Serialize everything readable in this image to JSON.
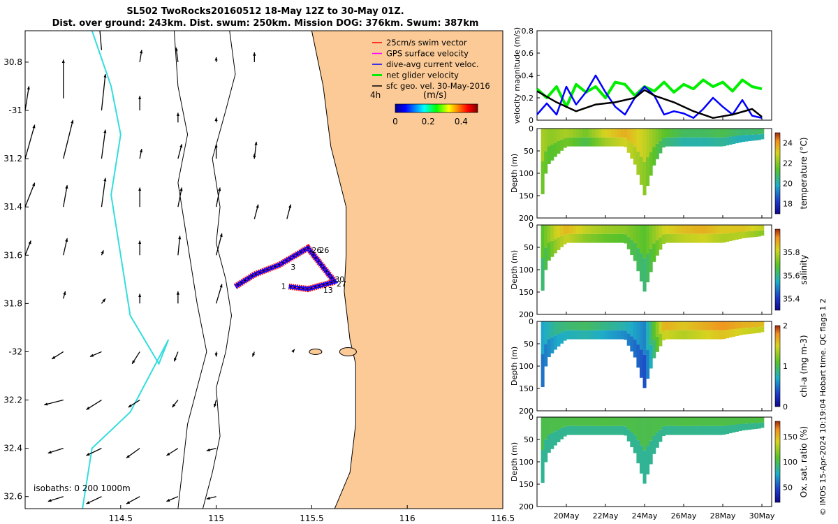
{
  "title": {
    "line1": "SL502 TwoRocks20160512 18-May 12Z to 30-May 01Z.",
    "line2": "Dist. over ground: 243km. Dist. swum: 250km. Mission DOG: 376km. Swum: 387km"
  },
  "credit": "© IMOS 15-Apr-2024 10:19:04 Hobart time. QC flags 1  2",
  "colors": {
    "land": "#fbca96",
    "isobath_200": "#000000",
    "isobath_1000": "#33dddd",
    "swim": "#ff0000",
    "gps": "#ff00ff",
    "current": "#0000ff",
    "net": "#00ee00",
    "geo": "#000000"
  },
  "chart_data": [
    {
      "type": "scatter",
      "id": "map",
      "xticks": [
        114.5,
        115,
        115.5,
        116,
        116.5
      ],
      "xtick_labels": [
        "114.5",
        "115",
        "115.5",
        "116",
        "116.5"
      ],
      "yticks": [
        -30.8,
        -31,
        -31.2,
        -31.4,
        -31.6,
        -31.8,
        -32,
        -32.2,
        -32.4,
        -32.6
      ],
      "ytick_labels": [
        "30.8",
        "-31",
        "31.2",
        "31.4",
        "31.6",
        "31.8",
        "-32",
        "32.2",
        "32.4",
        "32.6"
      ],
      "xlim": [
        114.0,
        116.5
      ],
      "ylim": [
        -32.65,
        -30.67
      ],
      "legend": [
        "25cm/s swim vector",
        "GPS surface velocity",
        "dive-avg current veloc.",
        "net glider velocity",
        "sfc geo. vel. 30-May-2016"
      ],
      "colorbar": {
        "label": "(m/s)",
        "prefix": "4h",
        "ticks": [
          "0",
          "0.2",
          "0.4"
        ],
        "range": [
          0,
          0.5
        ]
      },
      "isobath_label": "isobaths: 0   200  1000m",
      "waypoint_labels": [
        "1",
        "3",
        "26",
        "26",
        "30",
        "27",
        "13"
      ],
      "track": [
        [
          115.1,
          -31.73
        ],
        [
          115.2,
          -31.68
        ],
        [
          115.33,
          -31.64
        ],
        [
          115.48,
          -31.57
        ],
        [
          115.58,
          -31.67
        ],
        [
          115.62,
          -31.71
        ],
        [
          115.48,
          -31.74
        ],
        [
          115.38,
          -31.73
        ]
      ],
      "geo_vectors": [
        [
          114.4,
          -30.75,
          -0.02,
          0.18
        ],
        [
          114.6,
          -30.8,
          0.01,
          0.05
        ],
        [
          114.8,
          -30.8,
          -0.01,
          0.06
        ],
        [
          115.0,
          -30.8,
          0.0,
          0.02
        ],
        [
          115.2,
          -30.8,
          0.0,
          0.04
        ],
        [
          114.0,
          -31.0,
          0.02,
          0.1
        ],
        [
          114.2,
          -30.95,
          0.0,
          0.16
        ],
        [
          114.4,
          -31.0,
          0.02,
          0.15
        ],
        [
          114.6,
          -31.0,
          0.0,
          0.06
        ],
        [
          114.8,
          -31.05,
          0.0,
          0.04
        ],
        [
          115.0,
          -31.05,
          0.0,
          0.02
        ],
        [
          115.2,
          -31.2,
          0.0,
          0.02
        ],
        [
          114.0,
          -31.2,
          0.05,
          0.14
        ],
        [
          114.2,
          -31.2,
          0.05,
          0.16
        ],
        [
          114.4,
          -31.2,
          0.02,
          0.12
        ],
        [
          114.6,
          -31.2,
          0.01,
          0.04
        ],
        [
          114.8,
          -31.2,
          0.02,
          0.06
        ],
        [
          115.0,
          -31.2,
          0.0,
          0.06
        ],
        [
          115.2,
          -31.2,
          0.01,
          0.07
        ],
        [
          114.0,
          -31.4,
          0.05,
          0.1
        ],
        [
          114.2,
          -31.4,
          0.02,
          0.09
        ],
        [
          114.4,
          -31.4,
          0.02,
          0.12
        ],
        [
          114.6,
          -31.4,
          0.0,
          0.08
        ],
        [
          114.8,
          -31.4,
          0.02,
          0.08
        ],
        [
          115.0,
          -31.4,
          0.02,
          0.08
        ],
        [
          115.2,
          -31.45,
          0.02,
          0.06
        ],
        [
          115.37,
          -31.45,
          0.02,
          0.06
        ],
        [
          114.0,
          -31.6,
          0.03,
          0.06
        ],
        [
          114.2,
          -31.6,
          0.02,
          0.07
        ],
        [
          114.4,
          -31.6,
          0.01,
          0.02
        ],
        [
          114.6,
          -31.6,
          0.0,
          0.06
        ],
        [
          114.8,
          -31.6,
          0.01,
          0.08
        ],
        [
          115.0,
          -31.6,
          0.03,
          0.09
        ],
        [
          114.2,
          -31.78,
          0.01,
          0.03
        ],
        [
          114.4,
          -31.8,
          0.02,
          0.02
        ],
        [
          114.6,
          -31.8,
          0.0,
          0.04
        ],
        [
          114.8,
          -31.8,
          0.0,
          0.05
        ],
        [
          115.0,
          -31.8,
          0.03,
          0.08
        ],
        [
          114.0,
          -32.0,
          -0.08,
          -0.03
        ],
        [
          114.2,
          -32.0,
          -0.06,
          -0.03
        ],
        [
          114.4,
          -32.0,
          -0.06,
          -0.02
        ],
        [
          114.6,
          -32.0,
          -0.04,
          -0.05
        ],
        [
          114.8,
          -32.0,
          -0.02,
          -0.04
        ],
        [
          115.0,
          -32.0,
          0.0,
          -0.02
        ],
        [
          115.2,
          -32.0,
          -0.01,
          -0.02
        ],
        [
          115.4,
          -32.0,
          0.01,
          0.01
        ],
        [
          114.0,
          -32.2,
          -0.1,
          -0.02
        ],
        [
          114.2,
          -32.2,
          -0.1,
          -0.02
        ],
        [
          114.4,
          -32.2,
          -0.08,
          -0.04
        ],
        [
          114.6,
          -32.2,
          -0.06,
          -0.03
        ],
        [
          114.8,
          -32.2,
          -0.03,
          -0.03
        ],
        [
          115.0,
          -32.2,
          -0.01,
          -0.03
        ],
        [
          114.0,
          -32.4,
          -0.08,
          -0.02
        ],
        [
          114.2,
          -32.4,
          -0.08,
          -0.02
        ],
        [
          114.4,
          -32.4,
          -0.08,
          -0.03
        ],
        [
          114.6,
          -32.4,
          -0.07,
          -0.04
        ],
        [
          114.8,
          -32.4,
          -0.06,
          -0.03
        ],
        [
          115.0,
          -32.4,
          -0.05,
          -0.01
        ],
        [
          114.0,
          -32.6,
          -0.08,
          -0.02
        ],
        [
          114.2,
          -32.6,
          -0.08,
          -0.02
        ],
        [
          114.4,
          -32.6,
          -0.08,
          -0.03
        ],
        [
          114.6,
          -32.6,
          -0.07,
          -0.03
        ],
        [
          114.8,
          -32.6,
          -0.06,
          -0.02
        ],
        [
          115.0,
          -32.6,
          -0.05,
          -0.01
        ]
      ]
    },
    {
      "type": "line",
      "id": "velocity",
      "ylabel": "velocity magnitude (m/s)",
      "ylim": [
        0,
        0.8
      ],
      "yticks": [
        0,
        0.2,
        0.4,
        0.6,
        0.8
      ],
      "xlim": [
        18.5,
        30.5
      ],
      "series": [
        {
          "name": "net glider velocity",
          "color": "#00ee00",
          "x": [
            18.5,
            19,
            19.5,
            20,
            20.5,
            21,
            21.5,
            22,
            22.5,
            23,
            23.5,
            24,
            24.5,
            25,
            25.5,
            26,
            26.5,
            27,
            27.5,
            28,
            28.5,
            29,
            29.5,
            30
          ],
          "values": [
            0.28,
            0.2,
            0.3,
            0.12,
            0.32,
            0.25,
            0.3,
            0.2,
            0.34,
            0.32,
            0.22,
            0.3,
            0.26,
            0.34,
            0.25,
            0.32,
            0.28,
            0.36,
            0.3,
            0.34,
            0.26,
            0.36,
            0.3,
            0.28
          ]
        },
        {
          "name": "dive-avg current veloc.",
          "color": "#0000ff",
          "x": [
            18.5,
            19,
            19.5,
            20,
            20.5,
            21,
            21.5,
            22,
            22.5,
            23,
            23.5,
            24,
            24.5,
            25,
            25.5,
            26,
            26.5,
            27,
            27.5,
            28,
            28.5,
            29,
            29.5,
            30
          ],
          "values": [
            0.05,
            0.15,
            0.05,
            0.3,
            0.14,
            0.25,
            0.4,
            0.25,
            0.12,
            0.05,
            0.2,
            0.3,
            0.22,
            0.05,
            0.08,
            0.06,
            0.02,
            0.1,
            0.2,
            0.12,
            0.05,
            0.18,
            0.04,
            0.02
          ]
        },
        {
          "name": "sfc geo. vel.",
          "color": "#000000",
          "x": [
            18.5,
            19.5,
            20.5,
            21.5,
            22.5,
            23.5,
            24,
            24.5,
            25.5,
            26.5,
            27.5,
            28.5,
            29.5,
            30
          ],
          "values": [
            0.26,
            0.16,
            0.08,
            0.14,
            0.16,
            0.2,
            0.27,
            0.22,
            0.16,
            0.08,
            0.02,
            0.05,
            0.1,
            0.03
          ]
        }
      ]
    },
    {
      "type": "heatmap",
      "id": "temperature",
      "label": "temperature (°C)",
      "ylabel": "Depth (m)",
      "yticks": [
        "0",
        "50",
        "100",
        "150",
        "200"
      ],
      "cticks": [
        "18",
        "20",
        "22",
        "24"
      ],
      "crange": [
        17,
        25
      ],
      "colormap": "parula",
      "bottom_depth": [
        [
          18.7,
          170
        ],
        [
          19.0,
          85
        ],
        [
          19.5,
          60
        ],
        [
          20,
          40
        ],
        [
          21,
          40
        ],
        [
          22,
          40
        ],
        [
          23,
          40
        ],
        [
          23.5,
          80
        ],
        [
          24,
          150
        ],
        [
          24.5,
          80
        ],
        [
          25,
          40
        ],
        [
          26,
          40
        ],
        [
          27,
          40
        ],
        [
          28,
          40
        ],
        [
          29,
          30
        ],
        [
          30,
          25
        ],
        [
          30.1,
          20
        ]
      ],
      "column_values": [
        [
          18.7,
          22.2
        ],
        [
          19.2,
          21.8
        ],
        [
          20,
          22.2
        ],
        [
          21,
          21.5
        ],
        [
          22,
          22.8
        ],
        [
          23,
          23.4
        ],
        [
          24,
          22.5
        ],
        [
          25,
          21.2
        ],
        [
          26,
          20.6
        ],
        [
          27,
          20.6
        ],
        [
          28,
          20.8
        ],
        [
          29,
          20.4
        ],
        [
          30,
          20.6
        ]
      ]
    },
    {
      "type": "heatmap",
      "id": "salinity",
      "label": "salinity",
      "ylabel": "Depth (m)",
      "yticks": [
        "0",
        "50",
        "100",
        "150",
        "200"
      ],
      "cticks": [
        "35.4",
        "35.6",
        "35.8"
      ],
      "crange": [
        35.3,
        36.0
      ],
      "colormap": "parula",
      "bottom_depth": [
        [
          18.7,
          170
        ],
        [
          19.0,
          85
        ],
        [
          19.5,
          60
        ],
        [
          20,
          40
        ],
        [
          21,
          40
        ],
        [
          22,
          40
        ],
        [
          23,
          40
        ],
        [
          23.5,
          80
        ],
        [
          24,
          150
        ],
        [
          24.5,
          80
        ],
        [
          25,
          40
        ],
        [
          26,
          40
        ],
        [
          27,
          40
        ],
        [
          28,
          40
        ],
        [
          29,
          30
        ],
        [
          30,
          25
        ],
        [
          30.1,
          20
        ]
      ],
      "column_values": [
        [
          18.7,
          35.65
        ],
        [
          19.5,
          35.8
        ],
        [
          20,
          35.85
        ],
        [
          21,
          35.78
        ],
        [
          22,
          35.74
        ],
        [
          23,
          35.72
        ],
        [
          24,
          35.66
        ],
        [
          25,
          35.8
        ],
        [
          26,
          35.84
        ],
        [
          27,
          35.86
        ],
        [
          28,
          35.82
        ],
        [
          29,
          35.83
        ],
        [
          30,
          35.78
        ]
      ]
    },
    {
      "type": "heatmap",
      "id": "chla",
      "label": "chl-a (mg m-3)",
      "ylabel": "Depth (m)",
      "yticks": [
        "0",
        "50",
        "100",
        "150",
        "200"
      ],
      "cticks": [
        "0",
        "1",
        "2"
      ],
      "crange": [
        0,
        2
      ],
      "colormap": "parula",
      "bottom_depth": [
        [
          18.7,
          170
        ],
        [
          19.0,
          85
        ],
        [
          19.5,
          60
        ],
        [
          20,
          40
        ],
        [
          21,
          40
        ],
        [
          22,
          40
        ],
        [
          23,
          40
        ],
        [
          23.5,
          80
        ],
        [
          24,
          150
        ],
        [
          24.5,
          80
        ],
        [
          25,
          40
        ],
        [
          26,
          40
        ],
        [
          27,
          40
        ],
        [
          28,
          40
        ],
        [
          29,
          30
        ],
        [
          30,
          25
        ],
        [
          30.1,
          20
        ]
      ],
      "column_values": [
        [
          18.7,
          0.6
        ],
        [
          19.5,
          0.8
        ],
        [
          20,
          0.85
        ],
        [
          21,
          0.9
        ],
        [
          22,
          0.8
        ],
        [
          23,
          0.7
        ],
        [
          24,
          0.5
        ],
        [
          25,
          1.6
        ],
        [
          26,
          1.5
        ],
        [
          27,
          1.6
        ],
        [
          28,
          1.7
        ],
        [
          29,
          1.6
        ],
        [
          30,
          1.55
        ]
      ]
    },
    {
      "type": "heatmap",
      "id": "oxygen",
      "label": "Ox. sat. ratio (%)",
      "ylabel": "Depth (m)",
      "yticks": [
        "0",
        "50",
        "100",
        "150",
        "200"
      ],
      "cticks": [
        "50",
        "100",
        "150"
      ],
      "crange": [
        20,
        180
      ],
      "colormap": "parula",
      "bottom_depth": [
        [
          18.7,
          170
        ],
        [
          19.0,
          85
        ],
        [
          19.5,
          60
        ],
        [
          20,
          40
        ],
        [
          21,
          40
        ],
        [
          22,
          40
        ],
        [
          23,
          40
        ],
        [
          23.5,
          80
        ],
        [
          24,
          150
        ],
        [
          24.5,
          80
        ],
        [
          25,
          40
        ],
        [
          26,
          40
        ],
        [
          27,
          40
        ],
        [
          28,
          40
        ],
        [
          29,
          30
        ],
        [
          30,
          25
        ],
        [
          30.1,
          20
        ]
      ],
      "column_values": [
        [
          18.7,
          96
        ],
        [
          20,
          97
        ],
        [
          22,
          98
        ],
        [
          24,
          96
        ],
        [
          26,
          98
        ],
        [
          28,
          97
        ],
        [
          30,
          98
        ]
      ]
    }
  ],
  "time_axis": {
    "ticks": [
      20,
      22,
      24,
      26,
      28,
      30
    ],
    "labels": [
      "20May",
      "22May",
      "24May",
      "26May",
      "28May",
      "30May"
    ]
  }
}
